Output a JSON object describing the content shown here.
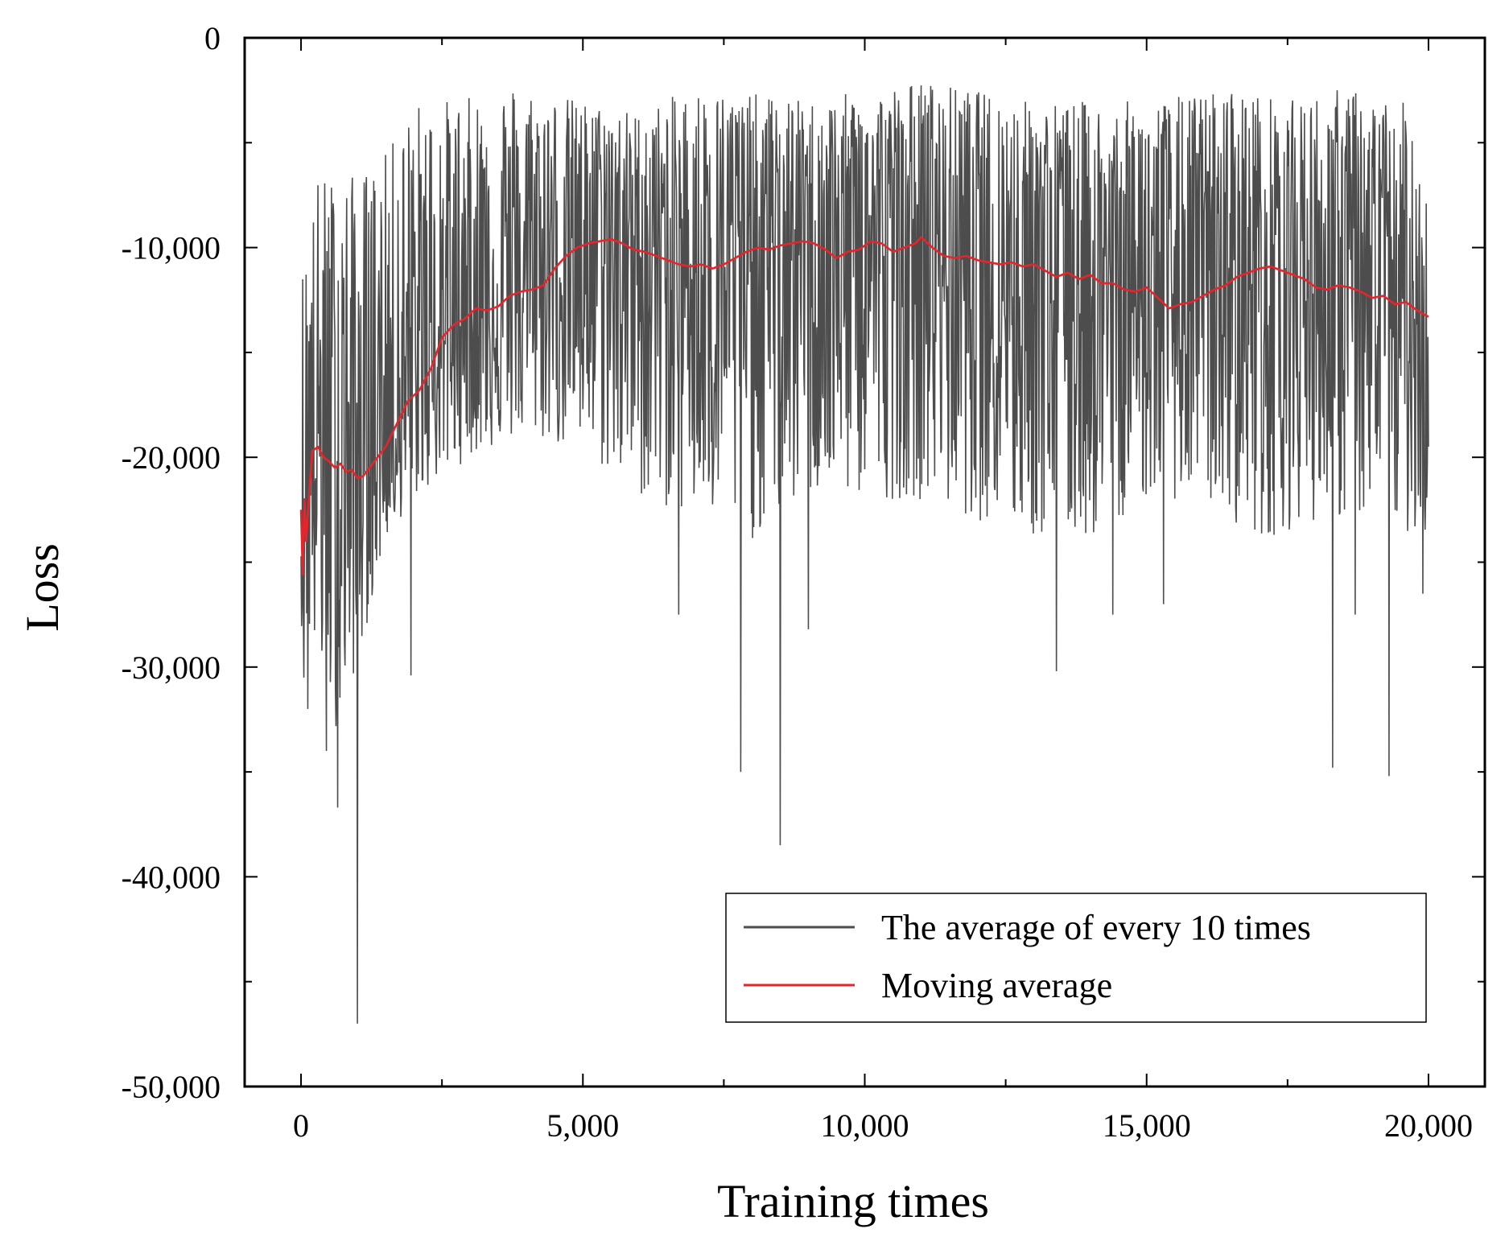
{
  "chart_data": {
    "type": "line",
    "xlabel": "Training times",
    "ylabel": "Loss",
    "xlim": [
      -1000,
      21000
    ],
    "ylim": [
      -50000,
      0
    ],
    "x_ticks": [
      0,
      5000,
      10000,
      15000,
      20000
    ],
    "x_tick_labels": [
      "0",
      "5,000",
      "10,000",
      "15,000",
      "20,000"
    ],
    "y_ticks": [
      0,
      -10000,
      -20000,
      -30000,
      -40000,
      -50000
    ],
    "y_tick_labels": [
      "0",
      "-10,000",
      "-20,000",
      "-30,000",
      "-40,000",
      "-50,000"
    ],
    "y_minor_ticks": [
      -5000,
      -15000,
      -25000,
      -35000,
      -45000
    ],
    "legend_position": "bottom-right",
    "colors": {
      "raw": "#4d4d4d",
      "moving": "#e8242a"
    },
    "series": [
      {
        "name": "The average of every 10 times",
        "color": "#4d4d4d",
        "kind": "noisy",
        "x_start": 0,
        "x_end": 20000,
        "n_points": 2000,
        "center": [
          [
            0,
            -23000
          ],
          [
            100,
            -20000
          ],
          [
            300,
            -19800
          ],
          [
            600,
            -20500
          ],
          [
            1000,
            -21000
          ],
          [
            1500,
            -19000
          ],
          [
            2000,
            -17000
          ],
          [
            2500,
            -14500
          ],
          [
            3000,
            -13000
          ],
          [
            3500,
            -12500
          ],
          [
            4000,
            -12000
          ],
          [
            4500,
            -11000
          ],
          [
            5000,
            -9800
          ],
          [
            5500,
            -9700
          ],
          [
            6000,
            -10300
          ],
          [
            6500,
            -10700
          ],
          [
            7000,
            -10900
          ],
          [
            7500,
            -10800
          ],
          [
            8000,
            -10400
          ],
          [
            8500,
            -9900
          ],
          [
            9000,
            -9900
          ],
          [
            9500,
            -10300
          ],
          [
            10000,
            -9800
          ],
          [
            10500,
            -10000
          ],
          [
            11000,
            -9600
          ],
          [
            11500,
            -10400
          ],
          [
            12000,
            -10600
          ],
          [
            12500,
            -10800
          ],
          [
            13000,
            -10900
          ],
          [
            13500,
            -11400
          ],
          [
            14000,
            -11500
          ],
          [
            14500,
            -12000
          ],
          [
            15000,
            -12200
          ],
          [
            15500,
            -12800
          ],
          [
            16000,
            -12400
          ],
          [
            16500,
            -11700
          ],
          [
            17000,
            -11000
          ],
          [
            17500,
            -11200
          ],
          [
            18000,
            -11800
          ],
          [
            18500,
            -11900
          ],
          [
            19000,
            -12200
          ],
          [
            19500,
            -12700
          ],
          [
            20000,
            -13300
          ]
        ],
        "envelope_upper": [
          [
            0,
            -11000
          ],
          [
            300,
            -6500
          ],
          [
            1000,
            -6500
          ],
          [
            1500,
            -5500
          ],
          [
            2000,
            -3000
          ],
          [
            3000,
            -2800
          ],
          [
            3700,
            -2000
          ],
          [
            5000,
            -3000
          ],
          [
            6000,
            -3500
          ],
          [
            7000,
            -2300
          ],
          [
            9000,
            -3000
          ],
          [
            11000,
            -2000
          ],
          [
            13000,
            -3000
          ],
          [
            15000,
            -3000
          ],
          [
            16500,
            -2300
          ],
          [
            17500,
            -3000
          ],
          [
            18500,
            -2300
          ],
          [
            20000,
            -3400
          ]
        ],
        "envelope_lower": [
          [
            0,
            -28000
          ],
          [
            300,
            -30000
          ],
          [
            600,
            -33000
          ],
          [
            1000,
            -30000
          ],
          [
            1500,
            -24000
          ],
          [
            2000,
            -22000
          ],
          [
            3000,
            -20000
          ],
          [
            4000,
            -19000
          ],
          [
            5000,
            -20000
          ],
          [
            6000,
            -22000
          ],
          [
            7000,
            -23000
          ],
          [
            8000,
            -24000
          ],
          [
            9000,
            -22000
          ],
          [
            10000,
            -22000
          ],
          [
            11000,
            -22000
          ],
          [
            12000,
            -23000
          ],
          [
            13000,
            -24000
          ],
          [
            14000,
            -24000
          ],
          [
            15000,
            -22000
          ],
          [
            16000,
            -22000
          ],
          [
            17000,
            -24000
          ],
          [
            18000,
            -23000
          ],
          [
            19000,
            -23000
          ],
          [
            20000,
            -24000
          ]
        ],
        "spikes": [
          [
            50,
            -30500
          ],
          [
            120,
            -32000
          ],
          [
            450,
            -34000
          ],
          [
            650,
            -36700
          ],
          [
            1000,
            -47000
          ],
          [
            1950,
            -30400
          ],
          [
            6700,
            -27500
          ],
          [
            7800,
            -35000
          ],
          [
            8500,
            -38500
          ],
          [
            9000,
            -28200
          ],
          [
            13400,
            -30200
          ],
          [
            14400,
            -27500
          ],
          [
            15300,
            -27000
          ],
          [
            18300,
            -34800
          ],
          [
            18700,
            -27500
          ],
          [
            19300,
            -35200
          ],
          [
            19900,
            -26500
          ]
        ]
      },
      {
        "name": "Moving average",
        "color": "#e8242a",
        "kind": "smooth",
        "points": [
          [
            0,
            -22500
          ],
          [
            30,
            -25600
          ],
          [
            60,
            -22000
          ],
          [
            90,
            -24000
          ],
          [
            150,
            -21500
          ],
          [
            200,
            -19700
          ],
          [
            300,
            -19500
          ],
          [
            400,
            -20000
          ],
          [
            500,
            -20200
          ],
          [
            600,
            -20500
          ],
          [
            700,
            -20300
          ],
          [
            800,
            -20700
          ],
          [
            900,
            -20600
          ],
          [
            1000,
            -21000
          ],
          [
            1100,
            -20900
          ],
          [
            1300,
            -20200
          ],
          [
            1500,
            -19500
          ],
          [
            1700,
            -18400
          ],
          [
            1900,
            -17300
          ],
          [
            2100,
            -16800
          ],
          [
            2300,
            -15800
          ],
          [
            2500,
            -14300
          ],
          [
            2700,
            -13700
          ],
          [
            2900,
            -13400
          ],
          [
            3100,
            -12900
          ],
          [
            3300,
            -13000
          ],
          [
            3500,
            -12800
          ],
          [
            3700,
            -12300
          ],
          [
            3900,
            -12100
          ],
          [
            4100,
            -12000
          ],
          [
            4300,
            -11800
          ],
          [
            4500,
            -11000
          ],
          [
            4700,
            -10400
          ],
          [
            4900,
            -10000
          ],
          [
            5100,
            -9800
          ],
          [
            5300,
            -9700
          ],
          [
            5500,
            -9600
          ],
          [
            5700,
            -9800
          ],
          [
            5900,
            -10100
          ],
          [
            6100,
            -10200
          ],
          [
            6300,
            -10400
          ],
          [
            6500,
            -10600
          ],
          [
            6700,
            -10800
          ],
          [
            6900,
            -10900
          ],
          [
            7100,
            -10800
          ],
          [
            7300,
            -11000
          ],
          [
            7500,
            -10800
          ],
          [
            7700,
            -10500
          ],
          [
            7900,
            -10200
          ],
          [
            8100,
            -10000
          ],
          [
            8300,
            -10100
          ],
          [
            8500,
            -9900
          ],
          [
            8700,
            -9800
          ],
          [
            8900,
            -9700
          ],
          [
            9100,
            -9800
          ],
          [
            9300,
            -10100
          ],
          [
            9500,
            -10500
          ],
          [
            9700,
            -10200
          ],
          [
            9900,
            -10100
          ],
          [
            10100,
            -9700
          ],
          [
            10300,
            -9800
          ],
          [
            10500,
            -10200
          ],
          [
            10700,
            -10000
          ],
          [
            10900,
            -9800
          ],
          [
            11000,
            -9500
          ],
          [
            11200,
            -10000
          ],
          [
            11400,
            -10400
          ],
          [
            11600,
            -10500
          ],
          [
            11800,
            -10400
          ],
          [
            12000,
            -10600
          ],
          [
            12200,
            -10700
          ],
          [
            12400,
            -10800
          ],
          [
            12600,
            -10700
          ],
          [
            12800,
            -10900
          ],
          [
            13000,
            -10800
          ],
          [
            13200,
            -11100
          ],
          [
            13400,
            -11400
          ],
          [
            13600,
            -11200
          ],
          [
            13800,
            -11500
          ],
          [
            14000,
            -11300
          ],
          [
            14200,
            -11700
          ],
          [
            14400,
            -11700
          ],
          [
            14600,
            -12000
          ],
          [
            14800,
            -12100
          ],
          [
            15000,
            -11900
          ],
          [
            15200,
            -12400
          ],
          [
            15400,
            -12900
          ],
          [
            15600,
            -12700
          ],
          [
            15800,
            -12600
          ],
          [
            16000,
            -12300
          ],
          [
            16200,
            -12000
          ],
          [
            16400,
            -11800
          ],
          [
            16600,
            -11400
          ],
          [
            16800,
            -11200
          ],
          [
            17000,
            -11000
          ],
          [
            17200,
            -10900
          ],
          [
            17400,
            -11100
          ],
          [
            17600,
            -11300
          ],
          [
            17800,
            -11500
          ],
          [
            18000,
            -11900
          ],
          [
            18200,
            -12000
          ],
          [
            18400,
            -11800
          ],
          [
            18600,
            -11900
          ],
          [
            18800,
            -12100
          ],
          [
            19000,
            -12400
          ],
          [
            19200,
            -12300
          ],
          [
            19400,
            -12700
          ],
          [
            19600,
            -12600
          ],
          [
            19800,
            -13000
          ],
          [
            20000,
            -13300
          ]
        ]
      }
    ]
  }
}
